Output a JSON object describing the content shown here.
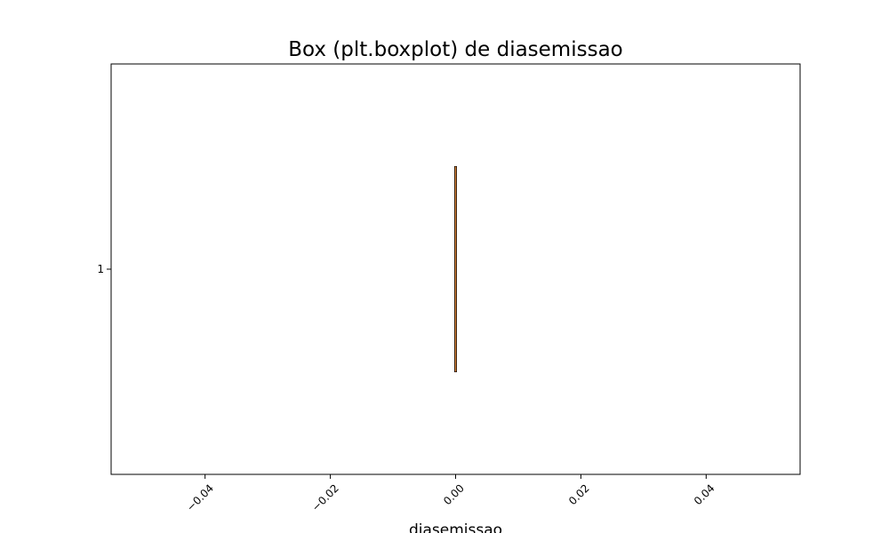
{
  "chart_data": {
    "type": "boxplot",
    "orientation": "horizontal",
    "title": "Box (plt.boxplot) de diasemissao",
    "xlabel": "diasemissao",
    "ylabel": "",
    "xlim": [
      -0.055,
      0.055
    ],
    "x_ticks": [
      -0.04,
      -0.02,
      0.0,
      0.02,
      0.04
    ],
    "x_tick_labels": [
      "−0.04",
      "−0.02",
      "0.00",
      "0.02",
      "0.04"
    ],
    "x_tick_rotation_deg": 45,
    "y_ticks": [
      "1"
    ],
    "grid": false,
    "series": [
      {
        "category": "1",
        "min": 0,
        "q1": 0,
        "median": 0,
        "q3": 0,
        "max": 0,
        "outliers": []
      }
    ],
    "colors": {
      "box": "#000000",
      "median": "#d9843b",
      "whisker": "#000000",
      "cap": "#000000"
    }
  }
}
